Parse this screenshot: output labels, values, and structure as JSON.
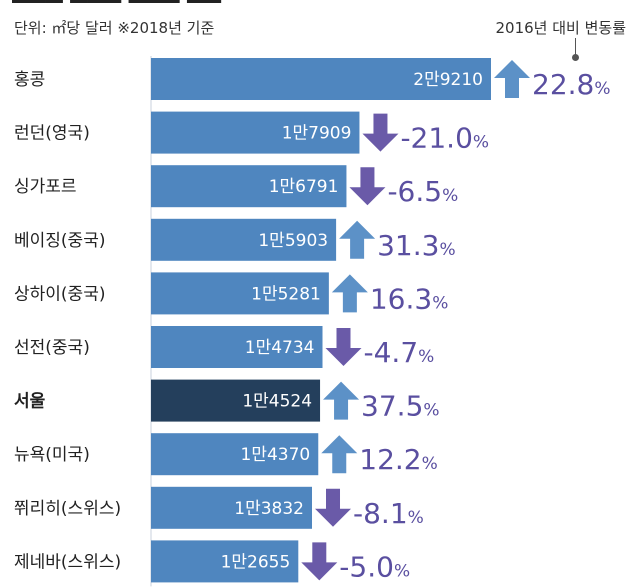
{
  "header": {
    "unit_note": "단위: ㎡당 달러 ※2018년 기준",
    "change_label": "2016년 대비 변동률"
  },
  "chart_data": {
    "type": "bar",
    "orientation": "horizontal",
    "categories": [
      "홍콩",
      "런던(영국)",
      "싱가포르",
      "베이징(중국)",
      "상하이(중국)",
      "선전(중국)",
      "서울",
      "뉴욕(미국)",
      "쮜리히(스위스)",
      "제네바(스위스)"
    ],
    "values": [
      29210,
      17909,
      16791,
      15903,
      15281,
      14734,
      14524,
      14370,
      13832,
      12655
    ],
    "value_labels": [
      "2만9210",
      "1만7909",
      "1만6791",
      "1만5903",
      "1만5281",
      "1만4734",
      "1만4524",
      "1만4370",
      "1만3832",
      "1만2655"
    ],
    "change_pct": [
      22.8,
      -21.0,
      -6.5,
      31.3,
      16.3,
      -4.7,
      37.5,
      12.2,
      -8.1,
      -5.0
    ],
    "change_labels": [
      "22.8",
      "-21.0",
      "-6.5",
      "31.3",
      "16.3",
      "-4.7",
      "37.5",
      "12.2",
      "-8.1",
      "-5.0"
    ],
    "percent_sign": "%",
    "highlight_index": 6,
    "xlim": [
      0,
      29210
    ],
    "title": "",
    "xlabel": "",
    "ylabel": "",
    "grid": false,
    "colors": {
      "bar": "#4f86bf",
      "bar_highlight": "#243f5c",
      "up_arrow": "#5c91c7",
      "down_arrow": "#6a5aa8",
      "change_text": "#5a4fa0"
    }
  }
}
